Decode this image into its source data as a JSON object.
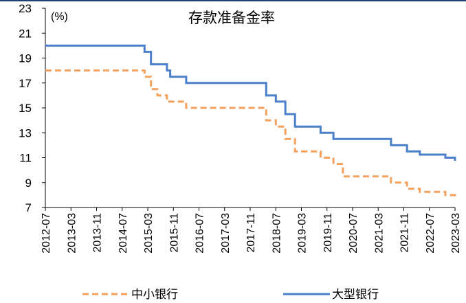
{
  "chart_data": {
    "type": "line",
    "title": "存款准备金率",
    "unit_label": "(%)",
    "xlabel": "",
    "ylabel": "",
    "ylim": [
      7,
      23
    ],
    "yticks": [
      7,
      9,
      11,
      13,
      15,
      17,
      19,
      21,
      23
    ],
    "x_tick_labels": [
      "2012-07",
      "2013-03",
      "2013-11",
      "2014-07",
      "2015-03",
      "2015-11",
      "2016-07",
      "2017-03",
      "2017-11",
      "2018-07",
      "2019-03",
      "2019-11",
      "2020-07",
      "2021-03",
      "2021-11",
      "2022-07",
      "2023-03"
    ],
    "grid": false,
    "legend_position": "bottom",
    "series": [
      {
        "name": "中小银行",
        "color": "#f4a15d",
        "style": "dashed",
        "step_points": [
          [
            "2012-07",
            18.0
          ],
          [
            "2015-02",
            17.5
          ],
          [
            "2015-04",
            16.5
          ],
          [
            "2015-06",
            16.0
          ],
          [
            "2015-09",
            15.5
          ],
          [
            "2016-03",
            15.0
          ],
          [
            "2018-04",
            14.0
          ],
          [
            "2018-07",
            13.5
          ],
          [
            "2018-10",
            12.5
          ],
          [
            "2019-01",
            11.5
          ],
          [
            "2019-09",
            11.0
          ],
          [
            "2020-01",
            10.5
          ],
          [
            "2020-04",
            9.5
          ],
          [
            "2021-07",
            9.0
          ],
          [
            "2021-12",
            8.5
          ],
          [
            "2022-04",
            8.25
          ],
          [
            "2022-12",
            8.0
          ],
          [
            "2023-03",
            7.8
          ]
        ]
      },
      {
        "name": "大型银行",
        "color": "#4a7fcb",
        "style": "solid",
        "step_points": [
          [
            "2012-07",
            20.0
          ],
          [
            "2015-02",
            19.5
          ],
          [
            "2015-04",
            18.5
          ],
          [
            "2015-09",
            18.0
          ],
          [
            "2015-10",
            17.5
          ],
          [
            "2016-03",
            17.0
          ],
          [
            "2018-04",
            16.0
          ],
          [
            "2018-07",
            15.5
          ],
          [
            "2018-10",
            14.5
          ],
          [
            "2019-01",
            13.5
          ],
          [
            "2019-09",
            13.0
          ],
          [
            "2020-01",
            12.5
          ],
          [
            "2021-07",
            12.0
          ],
          [
            "2021-12",
            11.5
          ],
          [
            "2022-04",
            11.25
          ],
          [
            "2022-12",
            11.0
          ],
          [
            "2023-03",
            10.75
          ]
        ]
      }
    ]
  }
}
